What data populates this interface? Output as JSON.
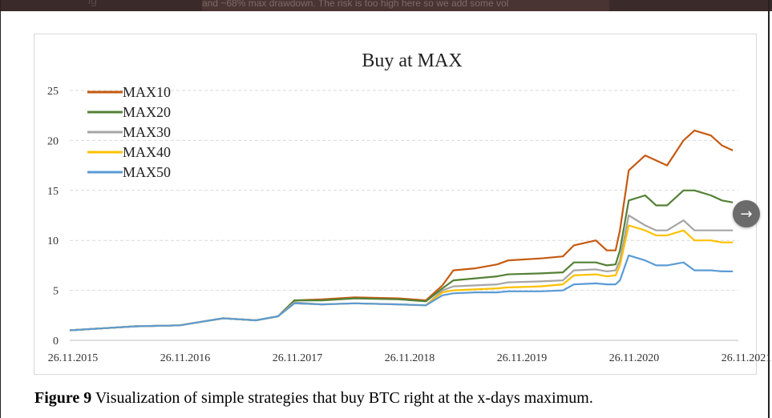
{
  "banner": {
    "text": "and ~68% max drawdown. The risk is too high here so we add some vol",
    "logo": "ig"
  },
  "caption": {
    "label": "Figure 9",
    "text": " Visualization of simple strategies that buy BTC right at the x-days maximum."
  },
  "navigation": {
    "next_icon": "→"
  },
  "colors": {
    "MAX10": "#c55a11",
    "MAX20": "#538135",
    "MAX30": "#a5a5a5",
    "MAX40": "#ffc000",
    "MAX50": "#5b9bd5"
  },
  "chart_data": {
    "type": "line",
    "title": "Buy at MAX",
    "xlabel": "",
    "ylabel": "",
    "ylim": [
      0,
      25
    ],
    "yticks": [
      "0",
      "5",
      "10",
      "15",
      "20",
      "25"
    ],
    "xticks": [
      "26.11.2015",
      "26.11.2016",
      "26.11.2017",
      "26.11.2018",
      "26.11.2019",
      "26.11.2020",
      "26.11.2021"
    ],
    "xlim": [
      2015.9,
      2022.0
    ],
    "grid": true,
    "legend": "top-left",
    "x": [
      2015.9,
      2016.5,
      2016.9,
      2017.3,
      2017.6,
      2017.8,
      2017.95,
      2018.2,
      2018.5,
      2018.9,
      2019.15,
      2019.3,
      2019.4,
      2019.6,
      2019.8,
      2019.9,
      2020.2,
      2020.4,
      2020.5,
      2020.7,
      2020.8,
      2020.88,
      2020.92,
      2021.0,
      2021.15,
      2021.25,
      2021.35,
      2021.5,
      2021.6,
      2021.75,
      2021.85,
      2021.95
    ],
    "series": [
      {
        "name": "MAX10",
        "values": [
          1.0,
          1.4,
          1.5,
          2.2,
          2.0,
          2.4,
          4.0,
          4.1,
          4.3,
          4.2,
          4.0,
          5.5,
          7.0,
          7.2,
          7.6,
          8.0,
          8.2,
          8.4,
          9.5,
          10.0,
          9.0,
          9.0,
          11.0,
          17.0,
          18.5,
          18.0,
          17.5,
          20.0,
          21.0,
          20.5,
          19.5,
          19.0
        ]
      },
      {
        "name": "MAX20",
        "values": [
          1.0,
          1.4,
          1.5,
          2.2,
          2.0,
          2.4,
          4.0,
          4.0,
          4.2,
          4.1,
          3.9,
          5.2,
          6.0,
          6.2,
          6.4,
          6.6,
          6.7,
          6.8,
          7.8,
          7.8,
          7.5,
          7.6,
          9.0,
          14.0,
          14.5,
          13.5,
          13.5,
          15.0,
          15.0,
          14.5,
          14.0,
          13.8
        ]
      },
      {
        "name": "MAX30",
        "values": [
          1.0,
          1.4,
          1.5,
          2.2,
          2.0,
          2.4,
          3.8,
          3.6,
          3.7,
          3.6,
          3.5,
          5.0,
          5.4,
          5.5,
          5.6,
          5.8,
          5.9,
          6.0,
          7.0,
          7.1,
          6.9,
          7.0,
          8.0,
          12.5,
          11.5,
          11.0,
          11.0,
          12.0,
          11.0,
          11.0,
          11.0,
          11.0
        ]
      },
      {
        "name": "MAX40",
        "values": [
          1.0,
          1.4,
          1.5,
          2.2,
          2.0,
          2.4,
          3.7,
          3.6,
          3.7,
          3.6,
          3.5,
          4.8,
          5.0,
          5.1,
          5.2,
          5.3,
          5.4,
          5.6,
          6.5,
          6.6,
          6.4,
          6.5,
          7.5,
          11.5,
          11.0,
          10.5,
          10.5,
          11.0,
          10.0,
          10.0,
          9.8,
          9.8
        ]
      },
      {
        "name": "MAX50",
        "values": [
          1.0,
          1.4,
          1.5,
          2.2,
          2.0,
          2.4,
          3.7,
          3.6,
          3.7,
          3.6,
          3.5,
          4.5,
          4.7,
          4.8,
          4.8,
          4.9,
          4.9,
          5.0,
          5.6,
          5.7,
          5.6,
          5.6,
          6.0,
          8.5,
          8.0,
          7.5,
          7.5,
          7.8,
          7.0,
          7.0,
          6.9,
          6.9
        ]
      }
    ]
  }
}
